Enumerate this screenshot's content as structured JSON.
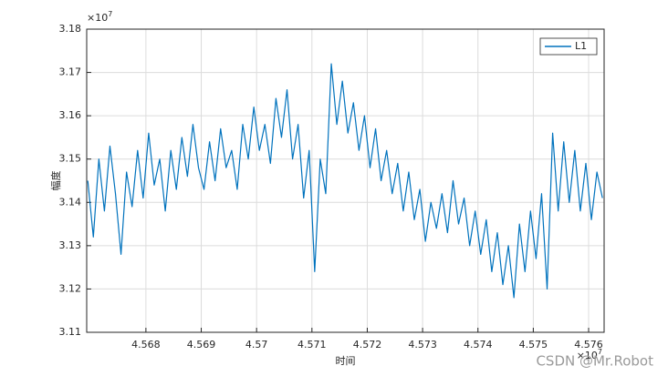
{
  "chart_data": {
    "type": "line",
    "xlabel": "时间",
    "ylabel": "幅度",
    "x_multiplier": {
      "base": "×10",
      "exponent": "7"
    },
    "y_multiplier": {
      "base": "×10",
      "exponent": "7"
    },
    "watermark": "CSDN @Mr.Robot",
    "xlim": [
      4.56693,
      4.57628
    ],
    "ylim": [
      3.11,
      3.18
    ],
    "xticks": [
      4.568,
      4.569,
      4.57,
      4.571,
      4.572,
      4.573,
      4.574,
      4.575,
      4.576
    ],
    "yticks": [
      3.11,
      3.12,
      3.13,
      3.14,
      3.15,
      3.16,
      3.17,
      3.18
    ],
    "grid": true,
    "legend": "top-right",
    "x": [
      4.56695,
      4.56705,
      4.56715,
      4.56725,
      4.56735,
      4.56745,
      4.56755,
      4.56765,
      4.56775,
      4.56785,
      4.56795,
      4.56805,
      4.56815,
      4.56825,
      4.56835,
      4.56845,
      4.56855,
      4.56865,
      4.56875,
      4.56885,
      4.56895,
      4.56905,
      4.56915,
      4.56925,
      4.56935,
      4.56945,
      4.56955,
      4.56965,
      4.56975,
      4.56985,
      4.56995,
      4.57005,
      4.57015,
      4.57025,
      4.57035,
      4.57045,
      4.57055,
      4.57065,
      4.57075,
      4.57085,
      4.57095,
      4.57105,
      4.57115,
      4.57125,
      4.57135,
      4.57145,
      4.57155,
      4.57165,
      4.57175,
      4.57185,
      4.57195,
      4.57205,
      4.57215,
      4.57225,
      4.57235,
      4.57245,
      4.57255,
      4.57265,
      4.57275,
      4.57285,
      4.57295,
      4.57305,
      4.57315,
      4.57325,
      4.57335,
      4.57345,
      4.57355,
      4.57365,
      4.57375,
      4.57385,
      4.57395,
      4.57405,
      4.57415,
      4.57425,
      4.57435,
      4.57445,
      4.57455,
      4.57465,
      4.57475,
      4.57485,
      4.57495,
      4.57505,
      4.57515,
      4.57525,
      4.57535,
      4.57545,
      4.57555,
      4.57565,
      4.57575,
      4.57585,
      4.57595,
      4.57605,
      4.57615,
      4.57625
    ],
    "series": [
      {
        "name": "L1",
        "color": "#0072bd",
        "values": [
          3.145,
          3.132,
          3.15,
          3.138,
          3.153,
          3.142,
          3.128,
          3.147,
          3.139,
          3.152,
          3.141,
          3.156,
          3.144,
          3.15,
          3.138,
          3.152,
          3.143,
          3.155,
          3.146,
          3.158,
          3.148,
          3.143,
          3.154,
          3.145,
          3.157,
          3.148,
          3.152,
          3.143,
          3.158,
          3.15,
          3.162,
          3.152,
          3.158,
          3.149,
          3.164,
          3.155,
          3.166,
          3.15,
          3.158,
          3.141,
          3.152,
          3.124,
          3.15,
          3.142,
          3.172,
          3.158,
          3.168,
          3.156,
          3.163,
          3.152,
          3.16,
          3.148,
          3.157,
          3.145,
          3.152,
          3.142,
          3.149,
          3.138,
          3.147,
          3.136,
          3.143,
          3.131,
          3.14,
          3.134,
          3.142,
          3.133,
          3.145,
          3.135,
          3.141,
          3.13,
          3.138,
          3.128,
          3.136,
          3.124,
          3.133,
          3.121,
          3.13,
          3.118,
          3.135,
          3.124,
          3.138,
          3.127,
          3.142,
          3.12,
          3.156,
          3.138,
          3.154,
          3.14,
          3.152,
          3.138,
          3.149,
          3.136,
          3.147,
          3.141
        ]
      }
    ]
  }
}
